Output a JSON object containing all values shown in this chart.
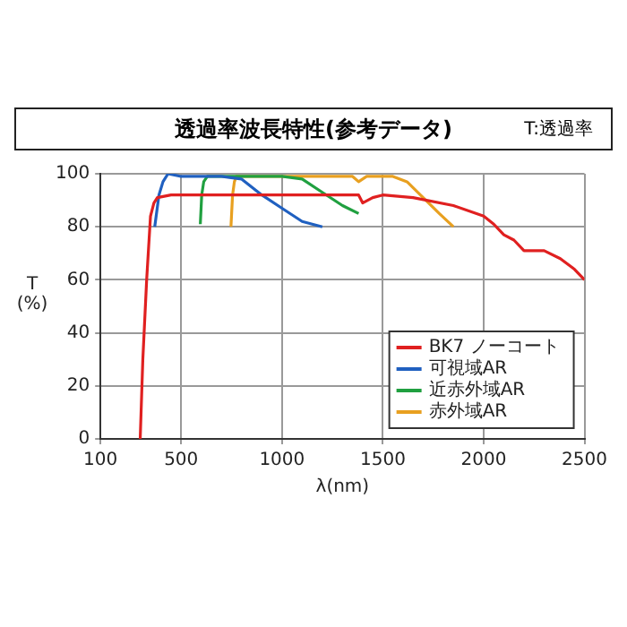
{
  "chart_data": {
    "type": "line",
    "title": "透過率波長特性(参考データ)",
    "annotations": [
      "T:透過率"
    ],
    "xlabel": "λ(nm)",
    "ylabel": "T (%)",
    "xlim": [
      100,
      2500
    ],
    "xticks": [
      100,
      500,
      1000,
      1500,
      2000,
      2500
    ],
    "ylim": [
      0,
      100
    ],
    "yticks": [
      0,
      20,
      40,
      60,
      80,
      100
    ],
    "grid": true,
    "legend": "bottom right",
    "marker": "none",
    "line_style": "solid",
    "series": [
      {
        "name": "BK7 ノーコート",
        "color": "#e02020",
        "x": [
          297,
          310,
          329,
          348,
          365,
          382,
          450,
          700,
          1000,
          1380,
          1400,
          1450,
          1500,
          1650,
          1850,
          2000,
          2050,
          2100,
          2150,
          2200,
          2300,
          2380,
          2450,
          2500
        ],
        "values": [
          0,
          30,
          60,
          84,
          89,
          91,
          92,
          92,
          92,
          92,
          89,
          91,
          92,
          91,
          88,
          84,
          81,
          77,
          75,
          71,
          71,
          68,
          64,
          60
        ]
      },
      {
        "name": "可視域AR",
        "color": "#2060c0",
        "x": [
          369,
          390,
          410,
          435,
          500,
          600,
          700,
          800,
          900,
          1000,
          1100,
          1200
        ],
        "values": [
          80,
          92,
          97,
          100,
          99,
          99,
          99,
          98,
          92,
          87,
          82,
          80
        ]
      },
      {
        "name": "近赤外域AR",
        "color": "#20a040",
        "x": [
          595,
          602,
          612,
          630,
          700,
          800,
          900,
          1000,
          1100,
          1200,
          1300,
          1380
        ],
        "values": [
          81,
          92,
          97,
          99,
          99,
          99,
          99,
          99,
          98,
          93,
          88,
          85
        ]
      },
      {
        "name": "赤外域AR",
        "color": "#e8a020",
        "x": [
          747,
          755,
          764,
          774,
          900,
          1100,
          1350,
          1380,
          1420,
          1550,
          1620,
          1700,
          1780,
          1850
        ],
        "values": [
          80,
          92,
          97,
          99,
          99,
          99,
          99,
          97,
          99,
          99,
          97,
          91,
          85,
          80
        ]
      }
    ]
  }
}
